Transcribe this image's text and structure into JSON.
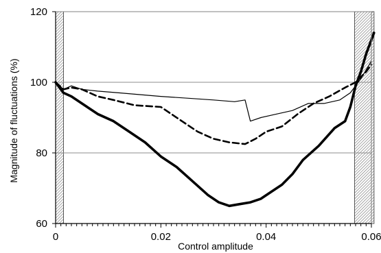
{
  "chart_data": {
    "type": "line",
    "xlabel": "Control amplitude",
    "ylabel": "Magnitude of fluctuations (%)",
    "xlim": [
      0,
      0.06
    ],
    "ylim": [
      60,
      120
    ],
    "xticks": [
      0,
      0.02,
      0.04,
      0.06
    ],
    "xtick_labels": [
      "0",
      "0.02",
      "0.04",
      "0.06"
    ],
    "yticks": [
      60,
      80,
      100,
      120
    ],
    "ytick_labels": [
      "60",
      "80",
      "100",
      "120"
    ],
    "grid": "horizontal",
    "legend": "none",
    "shaded_regions": [
      [
        0,
        0.0015
      ],
      [
        0.0568,
        0.0605
      ]
    ],
    "series": [
      {
        "style": "thin-solid",
        "x": [
          0,
          0.0015,
          0.003,
          0.005,
          0.008,
          0.012,
          0.016,
          0.02,
          0.025,
          0.03,
          0.034,
          0.036,
          0.037,
          0.039,
          0.042,
          0.045,
          0.048,
          0.051,
          0.054,
          0.056,
          0.058,
          0.06
        ],
        "y": [
          100,
          98,
          99,
          98,
          97.5,
          97,
          96.5,
          96,
          95.5,
          95,
          94.5,
          95,
          89,
          90,
          91,
          92,
          94,
          94,
          95,
          97,
          101,
          106
        ]
      },
      {
        "style": "dashed",
        "x": [
          0,
          0.0015,
          0.003,
          0.005,
          0.008,
          0.011,
          0.015,
          0.02,
          0.024,
          0.027,
          0.03,
          0.033,
          0.036,
          0.038,
          0.04,
          0.043,
          0.046,
          0.049,
          0.052,
          0.055,
          0.057,
          0.059,
          0.06
        ],
        "y": [
          100,
          98,
          98.5,
          98,
          96,
          95,
          93.5,
          93,
          89,
          86,
          84,
          83,
          82.5,
          84,
          86,
          87.5,
          91,
          94,
          96,
          98.5,
          100,
          103,
          105
        ]
      },
      {
        "style": "thick-solid",
        "x": [
          0,
          0.0015,
          0.003,
          0.005,
          0.008,
          0.011,
          0.014,
          0.017,
          0.02,
          0.023,
          0.026,
          0.029,
          0.031,
          0.033,
          0.035,
          0.037,
          0.039,
          0.041,
          0.043,
          0.045,
          0.047,
          0.05,
          0.053,
          0.055,
          0.056,
          0.057,
          0.058,
          0.059,
          0.0605
        ],
        "y": [
          100,
          97,
          96,
          94,
          91,
          89,
          86,
          83,
          79,
          76,
          72,
          68,
          66,
          65,
          65.5,
          66,
          67,
          69,
          71,
          74,
          78,
          82,
          87,
          89,
          93,
          99,
          103,
          108,
          114
        ]
      }
    ]
  }
}
